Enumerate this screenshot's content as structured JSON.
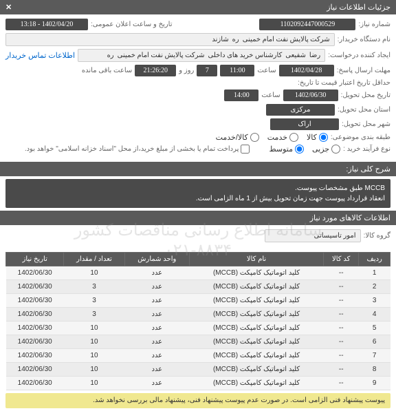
{
  "header": {
    "title": "جزئیات اطلاعات نیاز",
    "close": "✕"
  },
  "form": {
    "niaz_number_label": "شماره نیاز:",
    "niaz_number": "1102092447000529",
    "announce_label": "تاریخ و ساعت اعلان عمومی:",
    "announce_value": "1402/04/20 - 13:18",
    "buyer_label": "نام دستگاه خریدار:",
    "buyer_value": "شرکت پالایش نفت امام خمینی  ره  شازند",
    "requester_label": "ایجاد کننده درخواست:",
    "requester_value": "رضا  شفیعی  کارشناس خرید های داخلی  شرکت پالایش نفت امام خمینی  ره",
    "contact_link": "اطلاعات تماس خریدار",
    "deadline_label": "مهلت ارسال پاسخ:",
    "deadline_date": "1402/04/28",
    "time_label": "ساعت",
    "deadline_time": "11:00",
    "days_label": "روز و",
    "days_value": "7",
    "remaining_label": "ساعت باقی مانده",
    "remaining_time": "21:26:20",
    "min_validity_label": "حداقل تاریخ اعتبار قیمت تا تاریخ:",
    "delivery_date_label": "تاریخ محل تحویل:",
    "delivery_date": "1402/06/30",
    "delivery_time": "14:00",
    "province_label": "استان محل تحویل:",
    "province_value": "مرکزی",
    "city_label": "شهر محل تحویل:",
    "city_value": "اراک",
    "category_label": "طبقه بندی موضوعی:",
    "radio_kala": "کالا",
    "radio_khedmat": "خدمت",
    "radio_kala_khedmat": "کالا/خدمت",
    "process_label": "نوع فرآیند خرید :",
    "radio_small": "جزیی",
    "radio_medium": "متوسط",
    "payment_note": "پرداخت تمام یا بخشی از مبلغ خرید،از محل \"اسناد خزانه اسلامی\" خواهد بود."
  },
  "sections": {
    "general_title": "شرح کلی نیاز:",
    "general_desc_line1": "MCCB طبق مشخصات پیوست.",
    "general_desc_line2": "انعقاد قرارداد پیوست جهت زمان تحویل بیش از 1 ماه الزامی است.",
    "items_title": "اطلاعات کالاهای مورد نیاز",
    "group_label": "گروه کالا:",
    "group_value": "امور تاسیساتی"
  },
  "table": {
    "columns": [
      "ردیف",
      "کد کالا",
      "نام کالا",
      "واحد شمارش",
      "تعداد / مقدار",
      "تاریخ نیاز"
    ],
    "rows": [
      [
        "1",
        "--",
        "کلید اتوماتیک کامپکت (MCCB)",
        "عدد",
        "10",
        "1402/06/30"
      ],
      [
        "2",
        "--",
        "کلید اتوماتیک کامپکت (MCCB)",
        "عدد",
        "3",
        "1402/06/30"
      ],
      [
        "3",
        "--",
        "کلید اتوماتیک کامپکت (MCCB)",
        "عدد",
        "3",
        "1402/06/30"
      ],
      [
        "4",
        "--",
        "کلید اتوماتیک کامپکت (MCCB)",
        "عدد",
        "3",
        "1402/06/30"
      ],
      [
        "5",
        "--",
        "کلید اتوماتیک کامپکت (MCCB)",
        "عدد",
        "10",
        "1402/06/30"
      ],
      [
        "6",
        "--",
        "کلید اتوماتیک کامپکت (MCCB)",
        "عدد",
        "10",
        "1402/06/30"
      ],
      [
        "7",
        "--",
        "کلید اتوماتیک کامپکت (MCCB)",
        "عدد",
        "10",
        "1402/06/30"
      ],
      [
        "8",
        "--",
        "کلید اتوماتیک کامپکت (MCCB)",
        "عدد",
        "10",
        "1402/06/30"
      ],
      [
        "9",
        "--",
        "کلید اتوماتیک کامپکت (MCCB)",
        "عدد",
        "10",
        "1402/06/30"
      ]
    ]
  },
  "footer": {
    "note": "پیوست پیشنهاد فنی الزامی است. در صورت عدم پیوست پیشنهاد فنی، پیشنهاد مالی بررسی نخواهد شد."
  },
  "watermark": {
    "line1": "سامانه اطلاع رسانی مناقصات کشور",
    "line2": "۰۲۱-۸۸۳۴"
  }
}
